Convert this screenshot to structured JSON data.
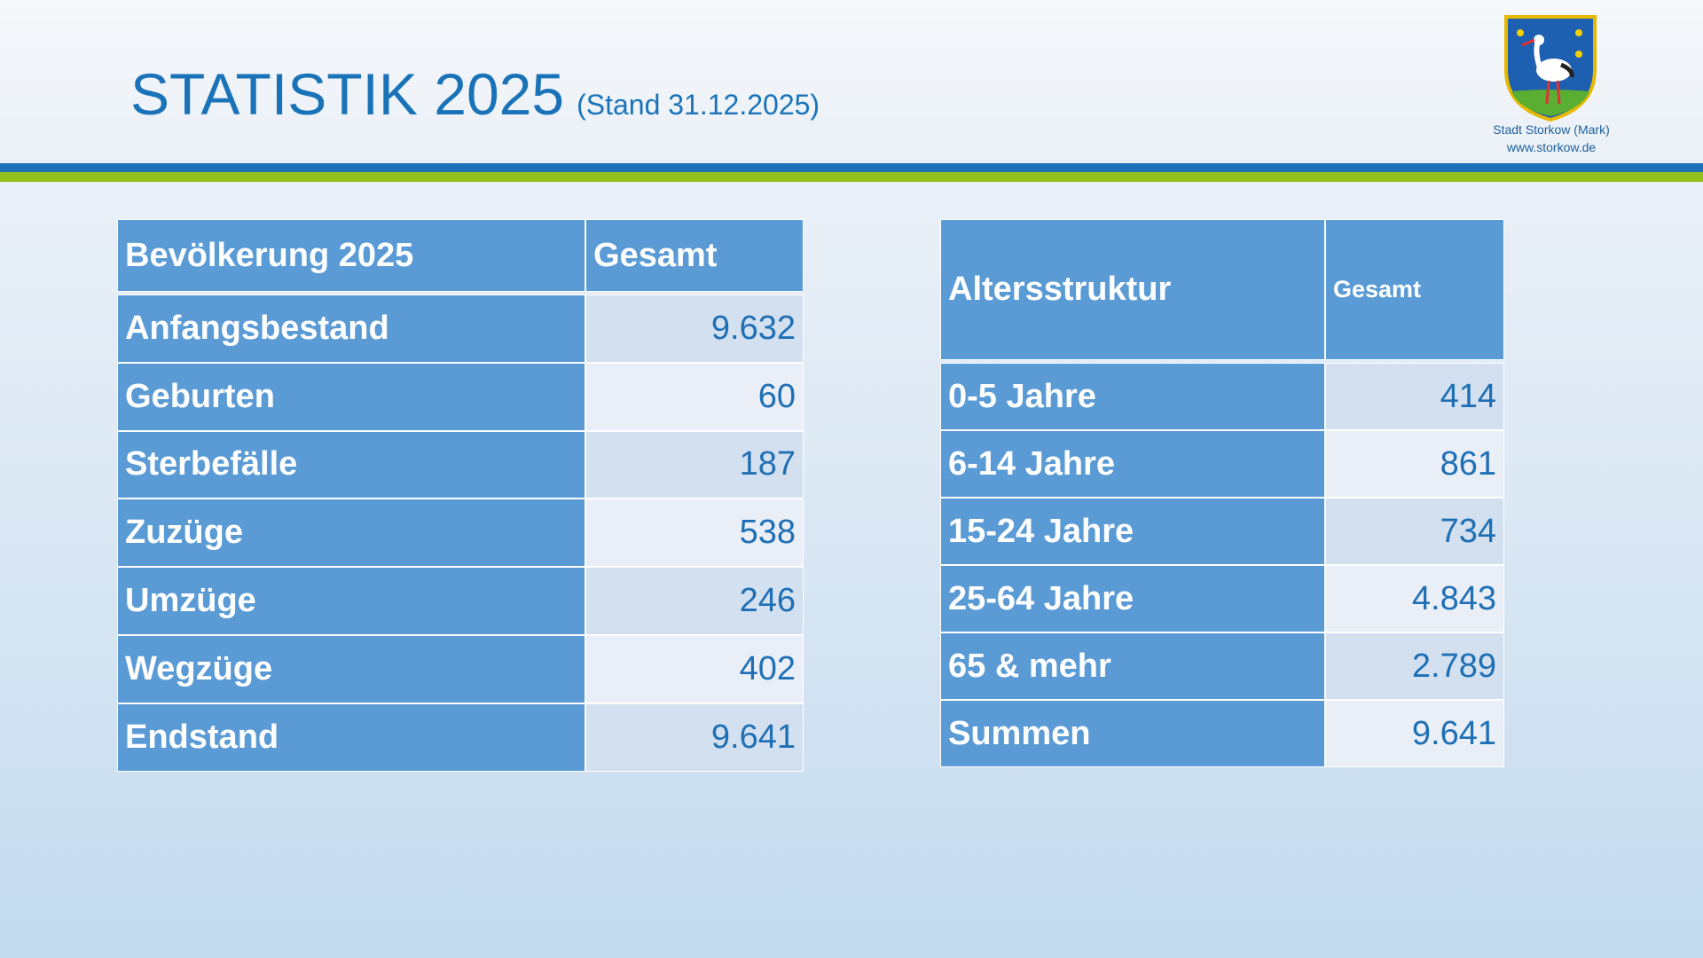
{
  "header": {
    "title": "STATISTIK 2025",
    "subtitle": "(Stand 31.12.2025)"
  },
  "logo": {
    "lines": [
      "Stadt Storkow (Mark)",
      "www.storkow.de"
    ]
  },
  "tables": [
    {
      "header": [
        "Bevölkerung 2025",
        "Gesamt"
      ],
      "rows": [
        [
          "Anfangsbestand",
          "9.632"
        ],
        [
          "Geburten",
          "60"
        ],
        [
          "Sterbefälle",
          "187"
        ],
        [
          "Zuzüge",
          "538"
        ],
        [
          "Umzüge",
          "246"
        ],
        [
          "Wegzüge",
          "402"
        ],
        [
          "Endstand",
          "9.641"
        ]
      ]
    },
    {
      "header": [
        "Altersstruktur",
        "Gesamt"
      ],
      "rows": [
        [
          "0-5 Jahre",
          "414"
        ],
        [
          "6-14 Jahre",
          "861"
        ],
        [
          "15-24 Jahre",
          "734"
        ],
        [
          "25-64 Jahre",
          "4.843"
        ],
        [
          "65 & mehr",
          "2.789"
        ],
        [
          "Summen",
          "9.641"
        ]
      ]
    }
  ]
}
